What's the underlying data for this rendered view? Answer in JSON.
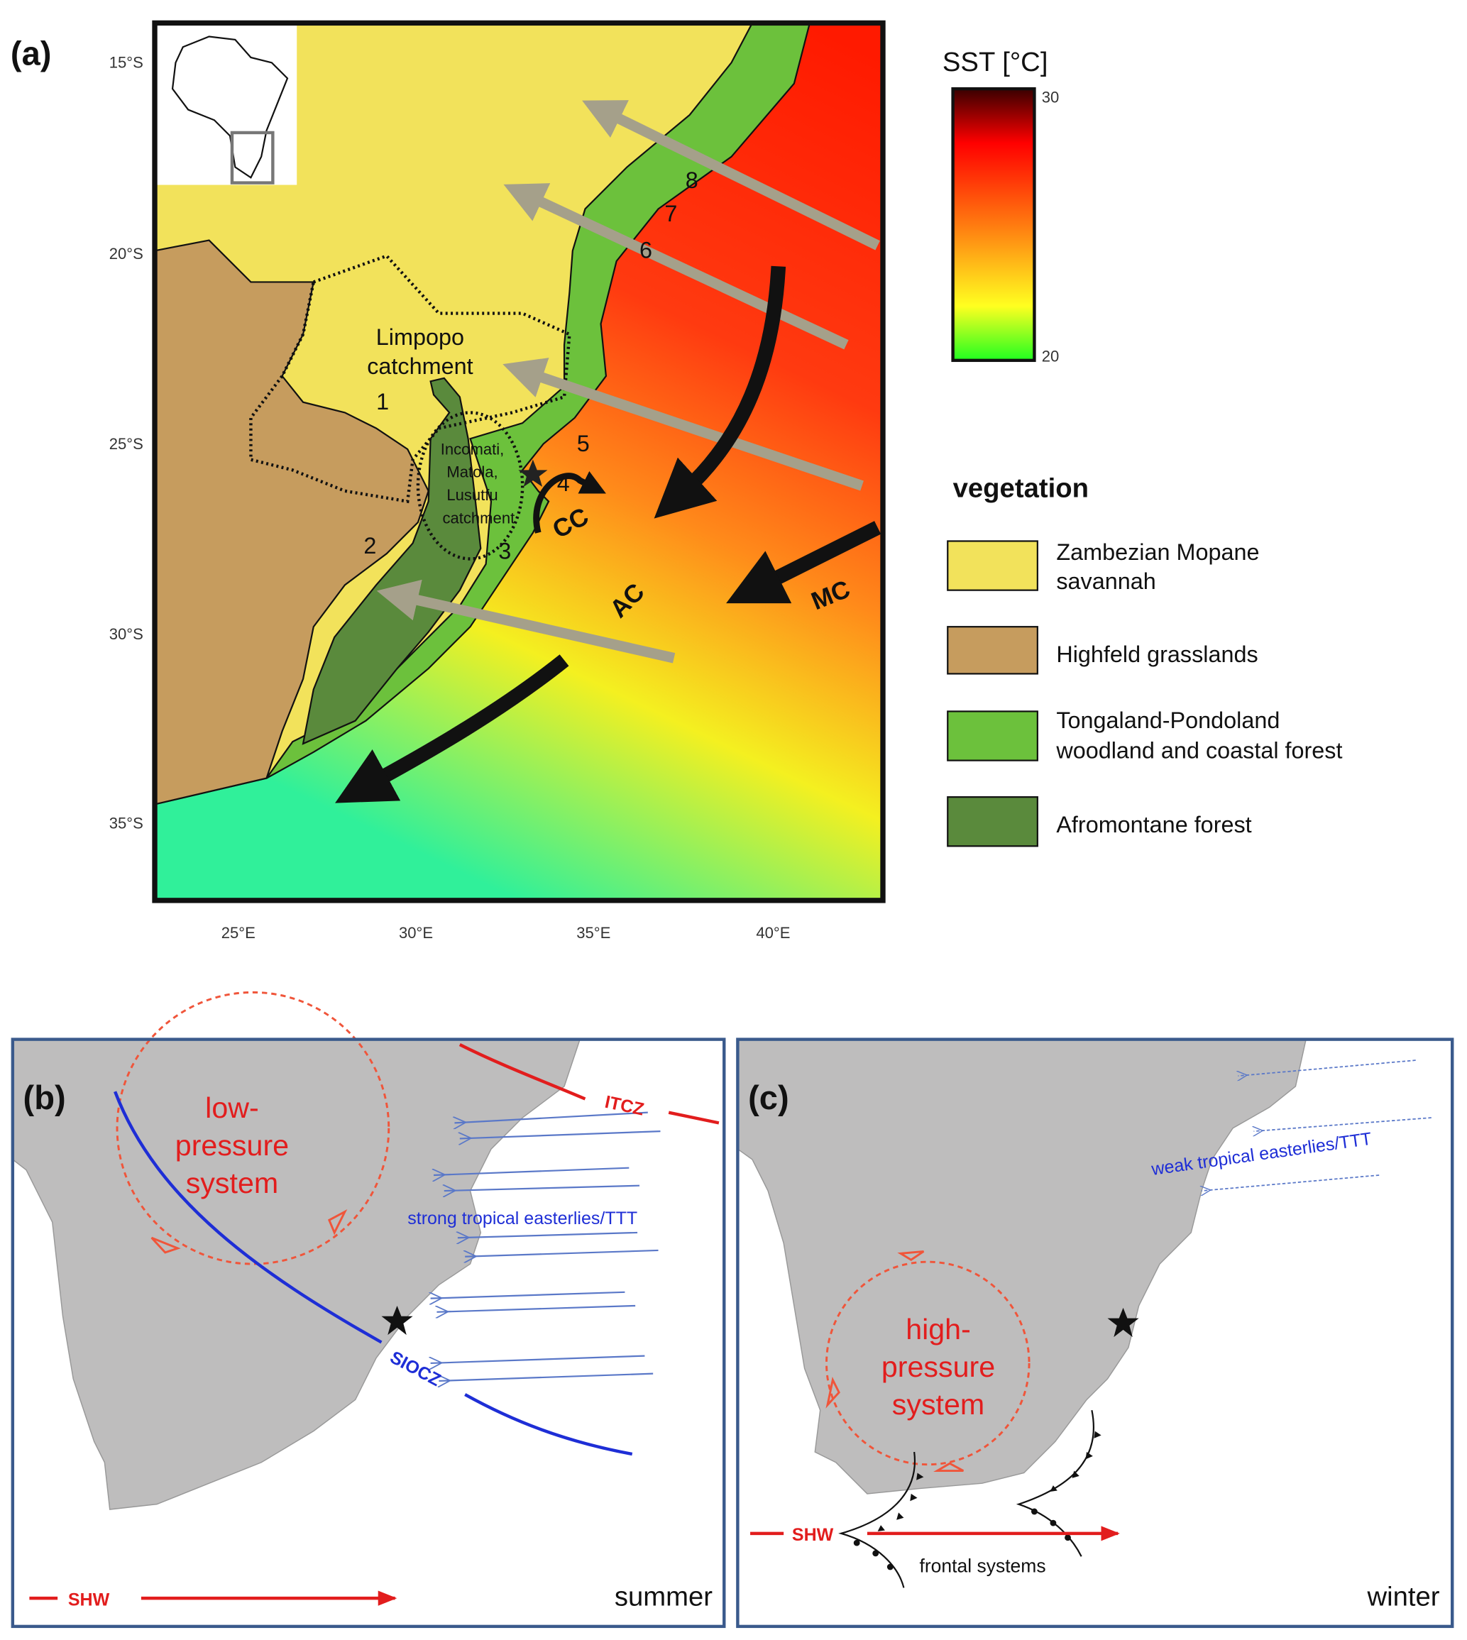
{
  "panel_a": {
    "label": "(a)",
    "lat_labels": [
      "15°S",
      "20°S",
      "25°S",
      "30°S",
      "35°S"
    ],
    "lon_labels": [
      "25°E",
      "30°E",
      "35°E",
      "40°E"
    ],
    "limpopo": [
      "Limpopo",
      "catchment"
    ],
    "incomati": [
      "Incomati,",
      "Matola,",
      "Lusutfu",
      "catchment"
    ],
    "sites": [
      "1",
      "2",
      "3",
      "4",
      "5",
      "6",
      "7",
      "8"
    ],
    "currents": [
      "CC",
      "AC",
      "MC"
    ],
    "sst_title": "SST [°C]",
    "sst_max": "30",
    "sst_min": "20",
    "vegetation_title": "vegetation",
    "legend": [
      {
        "label": [
          "Zambezian Mopane",
          "savannah"
        ],
        "color": "#f2e25b"
      },
      {
        "label": [
          "Highfeld grasslands"
        ],
        "color": "#c69c5e"
      },
      {
        "label": [
          "Tongaland-Pondoland",
          "woodland and coastal forest"
        ],
        "color": "#6cc13c"
      },
      {
        "label": [
          "Afromontane  forest"
        ],
        "color": "#5a8a3c"
      }
    ]
  },
  "panel_b": {
    "label": "(b)",
    "pressure": [
      "low-",
      "pressure",
      "system"
    ],
    "itcz": "ITCZ",
    "easterlies": "strong tropical easterlies/TTT",
    "siocz": "SIOCZ",
    "shw": "SHW",
    "season": "summer"
  },
  "panel_c": {
    "label": "(c)",
    "easterlies": "weak tropical easterlies/TTT",
    "pressure": [
      "high-",
      "pressure",
      "system"
    ],
    "shw": "SHW",
    "fronts": "frontal systems",
    "season": "winter"
  }
}
